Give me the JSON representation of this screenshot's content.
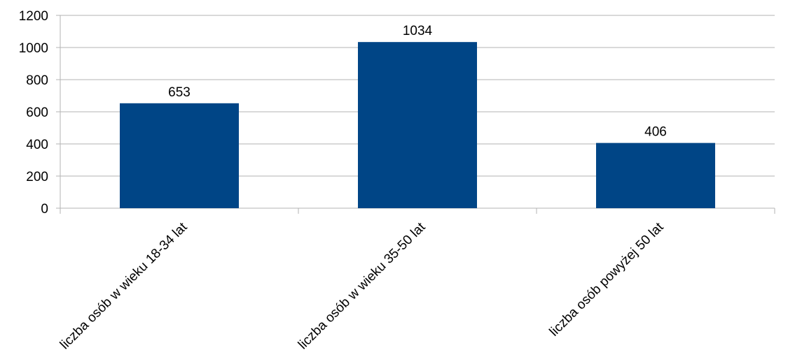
{
  "chart_data": {
    "type": "bar",
    "categories": [
      "liczba osób w wieku 18-34 lat",
      "liczba osób w wieku 35-50 lat",
      "liczba osób powyżej 50 lat"
    ],
    "values": [
      653,
      1034,
      406
    ],
    "data_labels": [
      "653",
      "1034",
      "406"
    ],
    "y_ticks": [
      "0",
      "200",
      "400",
      "600",
      "800",
      "1000",
      "1200"
    ],
    "ylim": [
      0,
      1200
    ],
    "grid": true,
    "legend": "none",
    "colors": {
      "bar": "#004586",
      "grid": "#b3b3b3",
      "axis": "#b3b3b3"
    }
  }
}
